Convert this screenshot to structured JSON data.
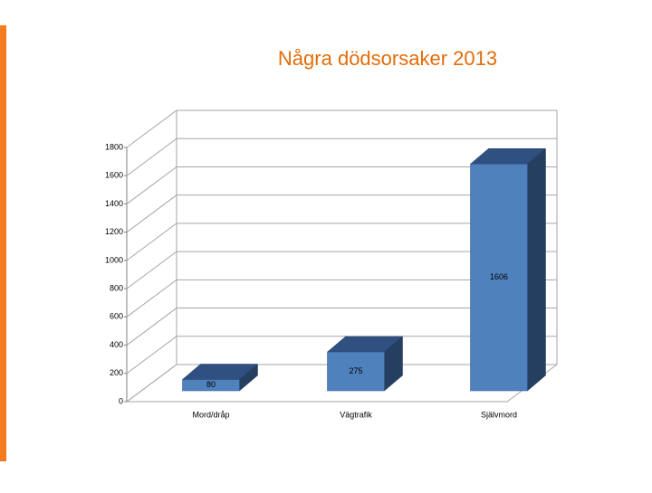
{
  "chart_data": {
    "type": "bar",
    "title": "Några dödsorsaker 2013",
    "categories": [
      "Mord/dråp",
      "Vägtrafik",
      "Självmord"
    ],
    "values": [
      80,
      275,
      1606
    ],
    "color": "#4f81bd",
    "ylim": [
      0,
      1800
    ],
    "yticks": [
      0,
      200,
      400,
      600,
      800,
      1000,
      1200,
      1400,
      1600,
      1800
    ],
    "grid": true
  }
}
